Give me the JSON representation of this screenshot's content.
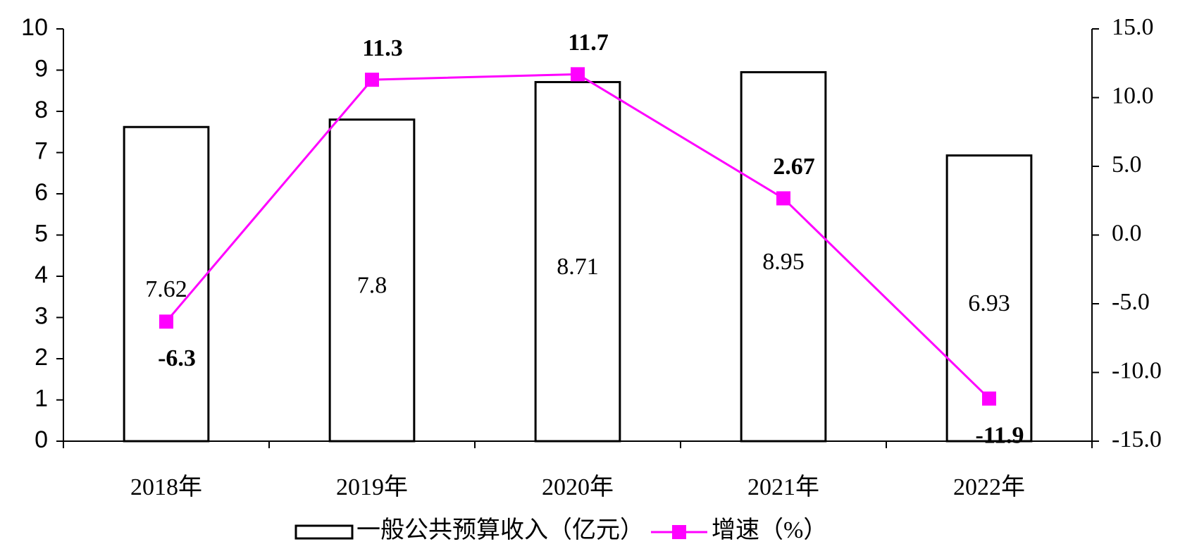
{
  "chart_data": {
    "type": "combo",
    "categories": [
      "2018年",
      "2019年",
      "2020年",
      "2021年",
      "2022年"
    ],
    "series": [
      {
        "name": "一般公共预算收入（亿元）",
        "type": "bar",
        "color": "#ffffff",
        "values": [
          7.62,
          7.8,
          8.71,
          8.95,
          6.93
        ]
      },
      {
        "name": "增速（%）",
        "type": "line",
        "axis": "y2",
        "color": "#ff00ff",
        "values": [
          -6.3,
          11.3,
          11.7,
          2.67,
          -11.9
        ]
      }
    ],
    "ylim": [
      0,
      10
    ],
    "yticks": [
      0,
      1,
      2,
      3,
      4,
      5,
      6,
      7,
      8,
      9,
      10
    ],
    "y2lim": [
      -15,
      15
    ],
    "y2ticks": [
      {
        "value": -15,
        "label": "-15.0"
      },
      {
        "value": -10,
        "label": "-10.0"
      },
      {
        "value": -5,
        "label": "-5.0"
      },
      {
        "value": 0,
        "label": "0.0"
      },
      {
        "value": 5,
        "label": "5.0"
      },
      {
        "value": 10,
        "label": "10.0"
      },
      {
        "value": 15,
        "label": "15.0"
      }
    ],
    "grid": false,
    "legend": "bottom"
  }
}
